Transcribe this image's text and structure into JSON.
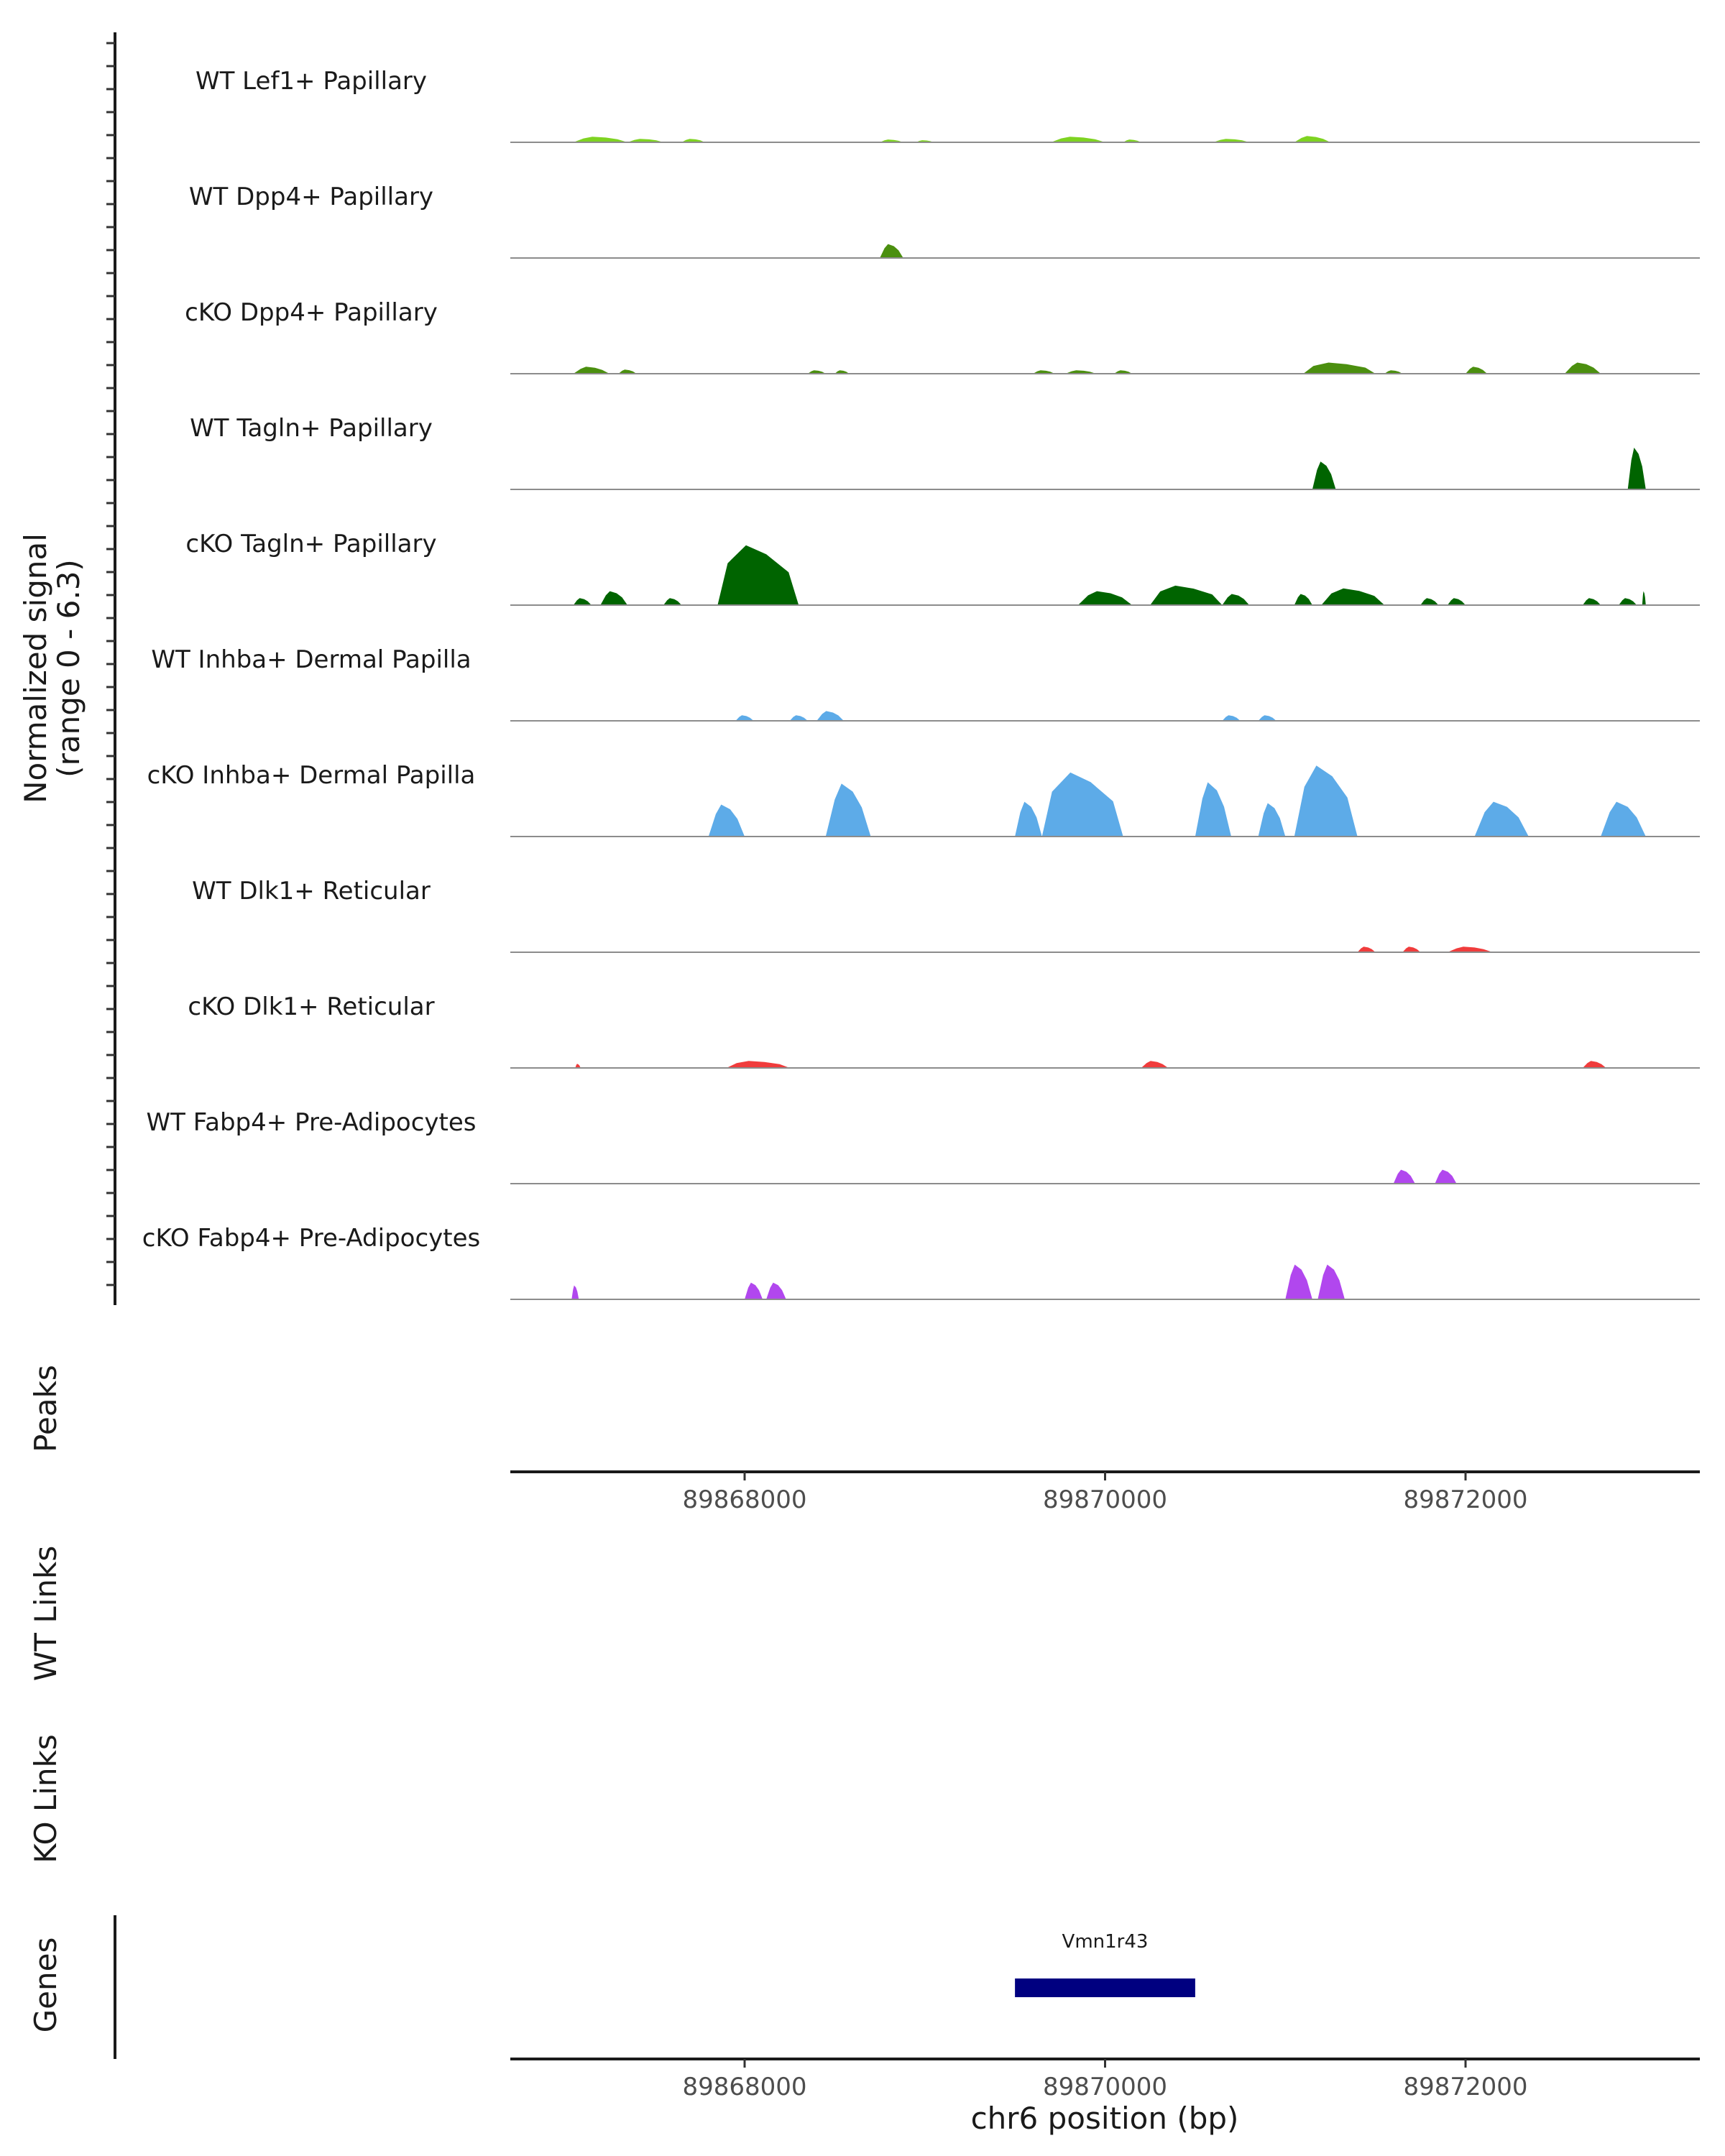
{
  "chart_data": {
    "type": "area",
    "title": "",
    "ylabel_line1": "Normalized signal",
    "ylabel_line2": "(range 0 - 6.3)",
    "y_range": [
      0,
      6.3
    ],
    "xlabel": "chr6 position (bp)",
    "xlim": [
      89866700,
      89873300
    ],
    "x_ticks": [
      89868000,
      89870000,
      89872000
    ],
    "x_tick_labels": [
      "89868000",
      "89870000",
      "89872000"
    ],
    "tracks": [
      {
        "name": "WT Lef1+ Papillary",
        "color": "#7ed321",
        "regions": [
          {
            "start": 89867050,
            "end": 89867350,
            "peak": 0.4
          },
          {
            "start": 89867350,
            "end": 89867550,
            "peak": 0.25
          },
          {
            "start": 89867650,
            "end": 89867780,
            "peak": 0.25
          },
          {
            "start": 89868750,
            "end": 89868880,
            "peak": 0.2
          },
          {
            "start": 89868950,
            "end": 89869050,
            "peak": 0.15
          },
          {
            "start": 89869700,
            "end": 89870000,
            "peak": 0.4
          },
          {
            "start": 89870100,
            "end": 89870200,
            "peak": 0.2
          },
          {
            "start": 89870600,
            "end": 89870800,
            "peak": 0.25
          },
          {
            "start": 89871050,
            "end": 89871250,
            "peak": 0.45
          }
        ]
      },
      {
        "name": "WT Dpp4+ Papillary",
        "color": "#4b8f0f",
        "regions": [
          {
            "start": 89868750,
            "end": 89868880,
            "peak": 1.0
          }
        ]
      },
      {
        "name": "cKO Dpp4+ Papillary",
        "color": "#4b8f0f",
        "regions": [
          {
            "start": 89867050,
            "end": 89867250,
            "peak": 0.5
          },
          {
            "start": 89867300,
            "end": 89867400,
            "peak": 0.3
          },
          {
            "start": 89868350,
            "end": 89868450,
            "peak": 0.25
          },
          {
            "start": 89868500,
            "end": 89868580,
            "peak": 0.25
          },
          {
            "start": 89869600,
            "end": 89869720,
            "peak": 0.25
          },
          {
            "start": 89869780,
            "end": 89869950,
            "peak": 0.25
          },
          {
            "start": 89870050,
            "end": 89870150,
            "peak": 0.25
          },
          {
            "start": 89871100,
            "end": 89871500,
            "peak": 0.8
          },
          {
            "start": 89871550,
            "end": 89871650,
            "peak": 0.25
          },
          {
            "start": 89872000,
            "end": 89872120,
            "peak": 0.5
          },
          {
            "start": 89872550,
            "end": 89872750,
            "peak": 0.8
          }
        ]
      },
      {
        "name": "WT Tagln+ Papillary",
        "color": "#006400",
        "regions": [
          {
            "start": 89871150,
            "end": 89871280,
            "peak": 2.0
          },
          {
            "start": 89872900,
            "end": 89873000,
            "peak": 3.0
          }
        ]
      },
      {
        "name": "cKO Tagln+ Papillary",
        "color": "#006400",
        "regions": [
          {
            "start": 89867050,
            "end": 89867150,
            "peak": 0.5
          },
          {
            "start": 89867200,
            "end": 89867350,
            "peak": 1.0
          },
          {
            "start": 89867550,
            "end": 89867650,
            "peak": 0.5
          },
          {
            "start": 89867850,
            "end": 89868300,
            "peak": 4.3
          },
          {
            "start": 89869850,
            "end": 89870150,
            "peak": 1.0
          },
          {
            "start": 89870250,
            "end": 89870650,
            "peak": 1.4
          },
          {
            "start": 89870650,
            "end": 89870800,
            "peak": 0.8
          },
          {
            "start": 89871050,
            "end": 89871150,
            "peak": 0.8
          },
          {
            "start": 89871200,
            "end": 89871550,
            "peak": 1.2
          },
          {
            "start": 89871750,
            "end": 89871850,
            "peak": 0.5
          },
          {
            "start": 89871900,
            "end": 89872000,
            "peak": 0.5
          },
          {
            "start": 89872650,
            "end": 89872750,
            "peak": 0.5
          },
          {
            "start": 89872850,
            "end": 89872950,
            "peak": 0.5
          },
          {
            "start": 89872980,
            "end": 89873000,
            "peak": 1.0
          }
        ]
      },
      {
        "name": "WT Inhba+ Dermal Papilla",
        "color": "#5dabe8",
        "regions": [
          {
            "start": 89867950,
            "end": 89868050,
            "peak": 0.4
          },
          {
            "start": 89868250,
            "end": 89868350,
            "peak": 0.4
          },
          {
            "start": 89868400,
            "end": 89868550,
            "peak": 0.7
          },
          {
            "start": 89870650,
            "end": 89870750,
            "peak": 0.4
          },
          {
            "start": 89870850,
            "end": 89870950,
            "peak": 0.4
          }
        ]
      },
      {
        "name": "cKO Inhba+ Dermal Papilla",
        "color": "#5dabe8",
        "regions": [
          {
            "start": 89867800,
            "end": 89868000,
            "peak": 2.3
          },
          {
            "start": 89868450,
            "end": 89868700,
            "peak": 3.8
          },
          {
            "start": 89869500,
            "end": 89869650,
            "peak": 2.5
          },
          {
            "start": 89869650,
            "end": 89870100,
            "peak": 4.6
          },
          {
            "start": 89870500,
            "end": 89870700,
            "peak": 3.9
          },
          {
            "start": 89870850,
            "end": 89871000,
            "peak": 2.4
          },
          {
            "start": 89871050,
            "end": 89871400,
            "peak": 5.1
          },
          {
            "start": 89872050,
            "end": 89872350,
            "peak": 2.5
          },
          {
            "start": 89872750,
            "end": 89873000,
            "peak": 2.5
          }
        ]
      },
      {
        "name": "WT Dlk1+ Reticular",
        "color": "#f03c3c",
        "regions": [
          {
            "start": 89871400,
            "end": 89871500,
            "peak": 0.4
          },
          {
            "start": 89871650,
            "end": 89871750,
            "peak": 0.4
          },
          {
            "start": 89871900,
            "end": 89872150,
            "peak": 0.4
          }
        ]
      },
      {
        "name": "cKO Dlk1+ Reticular",
        "color": "#f03c3c",
        "regions": [
          {
            "start": 89867060,
            "end": 89867090,
            "peak": 0.3
          },
          {
            "start": 89867900,
            "end": 89868250,
            "peak": 0.5
          },
          {
            "start": 89870200,
            "end": 89870350,
            "peak": 0.5
          },
          {
            "start": 89872650,
            "end": 89872780,
            "peak": 0.5
          }
        ]
      },
      {
        "name": "WT Fabp4+ Pre-Adipocytes",
        "color": "#b147ee",
        "regions": [
          {
            "start": 89871600,
            "end": 89871720,
            "peak": 1.0
          },
          {
            "start": 89871830,
            "end": 89871950,
            "peak": 1.0
          }
        ]
      },
      {
        "name": "cKO Fabp4+ Pre-Adipocytes",
        "color": "#b147ee",
        "regions": [
          {
            "start": 89867040,
            "end": 89867080,
            "peak": 1.0
          },
          {
            "start": 89868000,
            "end": 89868100,
            "peak": 1.2
          },
          {
            "start": 89868120,
            "end": 89868230,
            "peak": 1.2
          },
          {
            "start": 89871000,
            "end": 89871150,
            "peak": 2.5
          },
          {
            "start": 89871180,
            "end": 89871330,
            "peak": 2.5
          }
        ]
      }
    ],
    "panels": {
      "peaks": "Peaks",
      "wt_links": "WT Links",
      "ko_links": "KO Links",
      "genes": "Genes"
    },
    "gene": {
      "name": "Vmn1r43",
      "start": 89869500,
      "end": 89870500,
      "color": "#000080"
    }
  }
}
